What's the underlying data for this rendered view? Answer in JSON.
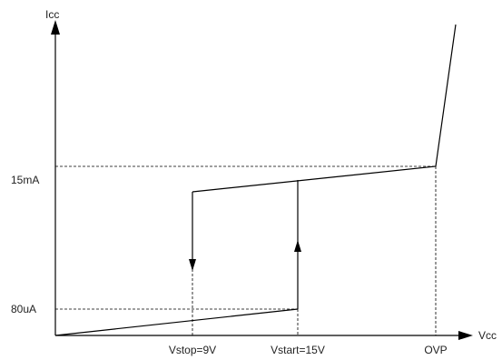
{
  "axes": {
    "y_label": "Icc",
    "x_label": "Vcc"
  },
  "ticks": {
    "y_high": "15mA",
    "y_low": "80uA",
    "x_stop": "Vstop=9V",
    "x_start": "Vstart=15V",
    "x_ovp": "OVP"
  },
  "colors": {
    "line": "#000000",
    "text": "#222222",
    "background": "#ffffff"
  }
}
